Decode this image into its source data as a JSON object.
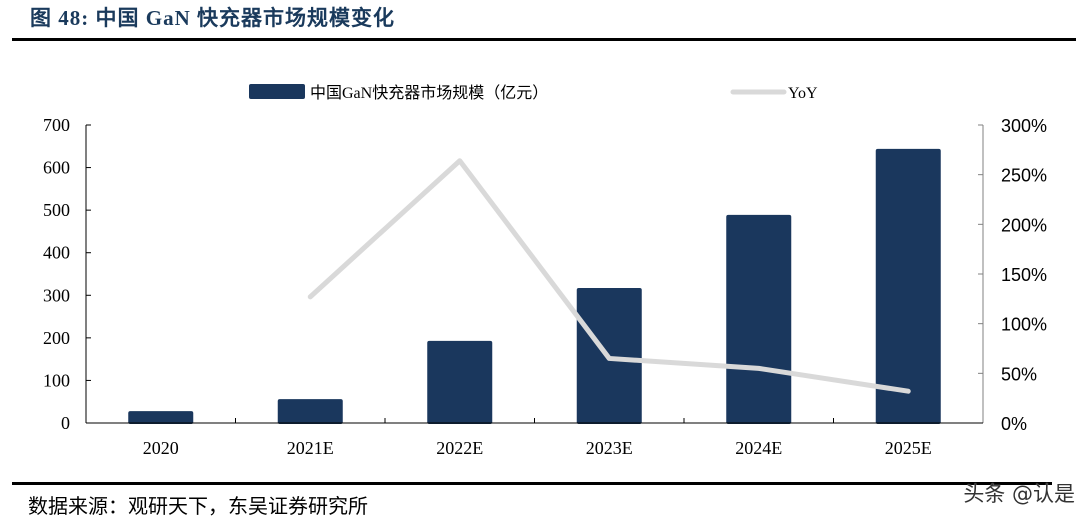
{
  "header": {
    "title": "图 48: 中国 GaN 快充器市场规模变化"
  },
  "footer": {
    "source": "数据来源：观研天下，东吴证券研究所",
    "watermark": "头条 @认是"
  },
  "colors": {
    "bar": "#1a375d",
    "line": "#d9d9d9",
    "axis": "#000000",
    "axis_right": "#808080",
    "title": "#1a3a5c"
  },
  "chart_data": {
    "type": "bar+line",
    "title": "中国 GaN 快充器市场规模变化",
    "categories": [
      "2020",
      "2021E",
      "2022E",
      "2023E",
      "2024E",
      "2025E"
    ],
    "series": [
      {
        "name": "中国GaN快充器市场规模（亿元）",
        "type": "bar",
        "axis": "left",
        "values": [
          28,
          56,
          193,
          317,
          489,
          644
        ]
      },
      {
        "name": "YoY",
        "type": "line",
        "axis": "right",
        "values": [
          null,
          127,
          264,
          65,
          55,
          32
        ],
        "unit": "%"
      }
    ],
    "y_left": {
      "ylim": [
        0,
        700
      ],
      "ticks": [
        "0",
        "100",
        "200",
        "300",
        "400",
        "500",
        "600",
        "700"
      ]
    },
    "y_right": {
      "ylim": [
        0,
        300
      ],
      "ticks": [
        "0%",
        "50%",
        "100%",
        "150%",
        "200%",
        "250%",
        "300%"
      ]
    },
    "xlabel": "",
    "ylabel": "",
    "legend": {
      "position": "top",
      "entries": [
        "中国GaN快充器市场规模（亿元）",
        "YoY"
      ]
    },
    "grid": false
  }
}
